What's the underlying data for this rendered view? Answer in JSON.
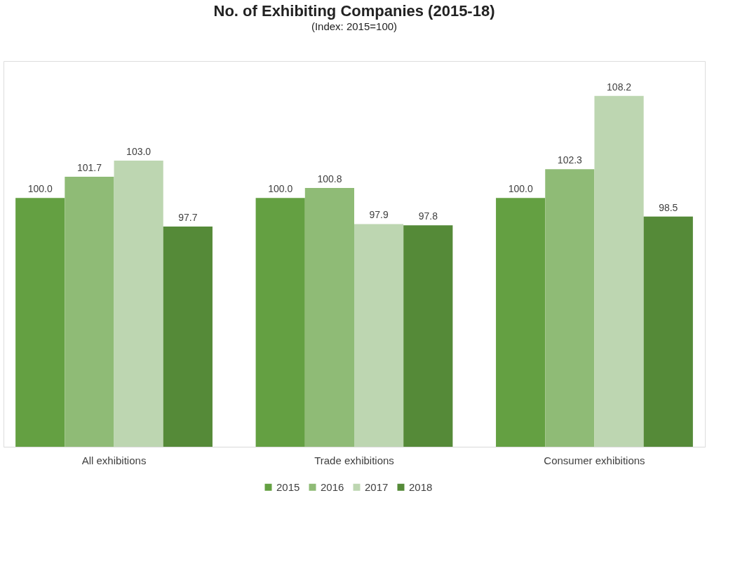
{
  "chart_data": {
    "type": "bar",
    "title": "No. of Exhibiting Companies (2015-18)",
    "subtitle": "(Index: 2015=100)",
    "categories": [
      "All exhibitions",
      "Trade exhibitions",
      "Consumer exhibitions"
    ],
    "series": [
      {
        "name": "2015",
        "color": "#64a042",
        "values": [
          100,
          100,
          100
        ],
        "value_labels": [
          "100.0",
          "100.0",
          "100.0"
        ]
      },
      {
        "name": "2016",
        "color": "#8fbb76",
        "values": [
          101.7,
          100.8,
          102.3
        ],
        "value_labels": [
          "101.7",
          "100.8",
          "102.3"
        ]
      },
      {
        "name": "2017",
        "color": "#bdd6b1",
        "values": [
          103,
          97.9,
          108.2
        ],
        "value_labels": [
          "103.0",
          "97.9",
          "108.2"
        ]
      },
      {
        "name": "2018",
        "color": "#558a38",
        "values": [
          97.7,
          97.8,
          98.5
        ],
        "value_labels": [
          "97.7",
          "97.8",
          "98.5"
        ]
      }
    ],
    "ylim": [
      80,
      111
    ],
    "grid": false,
    "legend": "bottom"
  }
}
